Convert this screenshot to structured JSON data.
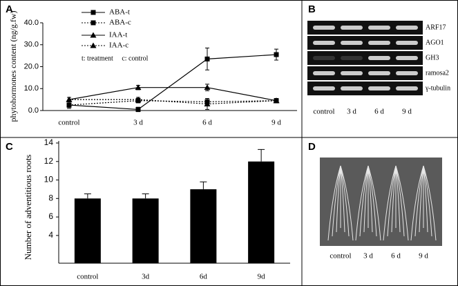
{
  "panel_letters": [
    "A",
    "B",
    "C",
    "D"
  ],
  "chart_data": [
    {
      "type": "line",
      "y_label": "phytohormones content (ng/g.fw)",
      "categories": [
        "control",
        "3 d",
        "6 d",
        "9 d"
      ],
      "ylim": [
        0,
        40
      ],
      "yticks": [
        {
          "value": 0,
          "label": "0.0"
        },
        {
          "value": 10,
          "label": "10.0"
        },
        {
          "value": 20,
          "label": "20.0"
        },
        {
          "value": 30,
          "label": "30.0"
        },
        {
          "value": 40,
          "label": "40.0"
        }
      ],
      "annotation": "t: treatment     c: control",
      "series": [
        {
          "name": "ABA-t",
          "color": "#000000",
          "marker": "square",
          "dash": "solid",
          "values": [
            2.5,
            0.5,
            23.5,
            25.5
          ],
          "errors": [
            1.5,
            1,
            5,
            2.5
          ]
        },
        {
          "name": "ABA-c",
          "color": "#000000",
          "marker": "square",
          "dash": "dotted",
          "values": [
            2.5,
            4.5,
            4,
            4.5
          ],
          "errors": [
            1,
            1,
            1,
            1
          ]
        },
        {
          "name": "IAA-t",
          "color": "#000000",
          "marker": "triangle",
          "dash": "solid",
          "values": [
            5,
            10.5,
            10.5,
            4.5
          ],
          "errors": [
            1,
            1,
            1.5,
            1
          ]
        },
        {
          "name": "IAA-c",
          "color": "#000000",
          "marker": "triangle",
          "dash": "dotted",
          "values": [
            5,
            5,
            3,
            4.5
          ],
          "errors": [
            1,
            1,
            2.5,
            1
          ]
        }
      ]
    },
    {
      "type": "bar",
      "y_label": "Number of adventitious roots",
      "categories": [
        "control",
        "3d",
        "6d",
        "9d"
      ],
      "values": [
        8,
        8,
        9,
        12
      ],
      "errors": [
        0.5,
        0.5,
        0.8,
        1.3
      ],
      "color": "#000000",
      "ylim": [
        1,
        14
      ],
      "yticks": [
        4,
        6,
        8,
        10,
        12,
        14
      ]
    }
  ],
  "gel": {
    "genes": [
      "ARF17",
      "AGO1",
      "GH3",
      "ramosa2",
      "γ-tubulin"
    ],
    "lanes": [
      "control",
      "3 d",
      "6 d",
      "9 d"
    ]
  },
  "photo": {
    "lanes": [
      "control",
      "3 d",
      "6 d",
      "9 d"
    ]
  }
}
